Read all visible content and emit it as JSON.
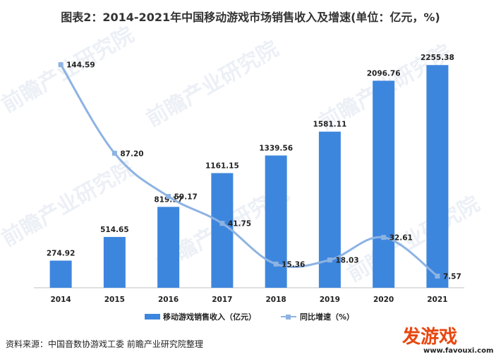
{
  "chart_data": {
    "type": "bar",
    "title": "图表2：2014-2021年中国移动游戏市场销售收入及增速(单位：亿元，%)",
    "categories": [
      "2014",
      "2015",
      "2016",
      "2017",
      "2018",
      "2019",
      "2020",
      "2021"
    ],
    "series": [
      {
        "name": "移动游戏销售收入（亿元）",
        "type": "bar",
        "axis": "left",
        "values": [
          274.92,
          514.65,
          819.17,
          1161.15,
          1339.56,
          1581.11,
          2096.76,
          2255.38
        ]
      },
      {
        "name": "同比增速（%）",
        "type": "line",
        "axis": "right",
        "values": [
          144.59,
          87.2,
          59.17,
          41.75,
          15.36,
          18.03,
          32.61,
          7.57
        ]
      }
    ],
    "ylim": [
      0,
      2500
    ],
    "y2lim": [
      0,
      160
    ],
    "legend_position": "bottom",
    "grid": false
  },
  "colors": {
    "bar": "#3d86de",
    "line": "#8db3e2"
  },
  "source": "资料来源：中国音数协游戏工委 前瞻产业研究院整理",
  "watermark": "前瞻产业研究院",
  "logo": {
    "text": "发游戏",
    "url": "www.favouxi.com"
  }
}
